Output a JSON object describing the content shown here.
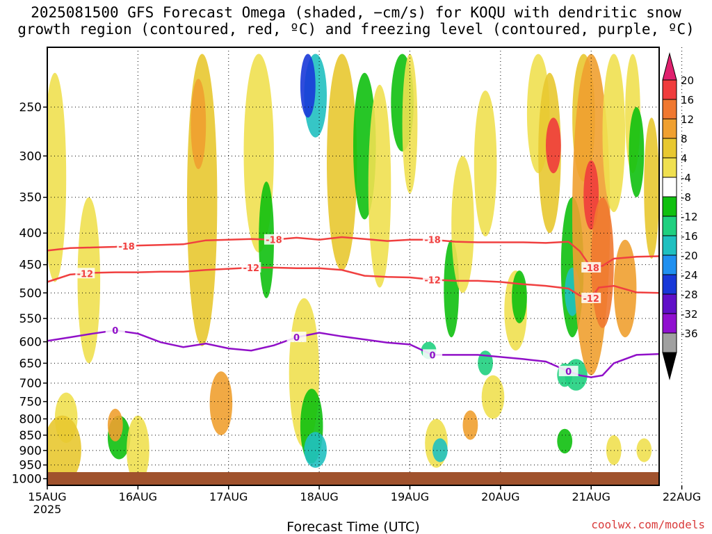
{
  "title": {
    "line1": "2025081500 GFS Forecast Omega (shaded, −cm/s) for KOQU with dendritic snow",
    "line2": "growth region (contoured, red, ºC) and freezing level (contoured, purple, ºC)"
  },
  "credit": "coolwx.com/models",
  "chart_data": {
    "type": "heatmap",
    "xlabel": "Forecast Time (UTC)",
    "x_ticks": [
      "15AUG",
      "16AUG",
      "17AUG",
      "18AUG",
      "19AUG",
      "20AUG",
      "21AUG",
      "22AUG"
    ],
    "x_tick_sublabel": "2025",
    "x_range_hours": [
      0,
      162
    ],
    "y_axis": "pressure (hPa), log scale, inverted",
    "y_ticks": [
      250,
      300,
      350,
      400,
      450,
      500,
      550,
      600,
      650,
      700,
      750,
      800,
      850,
      900,
      950,
      1000
    ],
    "y_range": [
      200,
      1025
    ],
    "grid": true,
    "colorbar": {
      "labels": [
        20,
        16,
        12,
        8,
        4,
        -4,
        -8,
        -12,
        -16,
        -20,
        -24,
        -28,
        -32,
        -36
      ],
      "colors": [
        "#e0206e",
        "#f03c3c",
        "#f07830",
        "#f0a030",
        "#e8c830",
        "#f0e050",
        "#ffffff",
        "#10c010",
        "#20d080",
        "#20c0c0",
        "#2090f0",
        "#1838d8",
        "#6010c8",
        "#9010d0",
        "#a0a0a0",
        "#000000"
      ]
    },
    "dendritic_contours": [
      {
        "label": "-18",
        "color": "#f04040",
        "points": [
          [
            0,
            427
          ],
          [
            6,
            423
          ],
          [
            12,
            422
          ],
          [
            18,
            421
          ],
          [
            24,
            419
          ],
          [
            30,
            418
          ],
          [
            36,
            417
          ],
          [
            42,
            411
          ],
          [
            48,
            410
          ],
          [
            54,
            409
          ],
          [
            60,
            410
          ],
          [
            66,
            407
          ],
          [
            72,
            410
          ],
          [
            78,
            406
          ],
          [
            84,
            409
          ],
          [
            90,
            412
          ],
          [
            96,
            410
          ],
          [
            102,
            410
          ],
          [
            108,
            413
          ],
          [
            114,
            414
          ],
          [
            120,
            414
          ],
          [
            126,
            414
          ],
          [
            132,
            415
          ],
          [
            138,
            413
          ],
          [
            141,
            428
          ],
          [
            144,
            455
          ],
          [
            147,
            452
          ],
          [
            150,
            440
          ],
          [
            156,
            437
          ],
          [
            162,
            436
          ]
        ],
        "label_hours": [
          21,
          60,
          102,
          144
        ]
      },
      {
        "label": "-12",
        "color": "#f04040",
        "points": [
          [
            0,
            480
          ],
          [
            6,
            467
          ],
          [
            12,
            464
          ],
          [
            18,
            463
          ],
          [
            24,
            463
          ],
          [
            30,
            462
          ],
          [
            36,
            462
          ],
          [
            42,
            459
          ],
          [
            48,
            457
          ],
          [
            54,
            455
          ],
          [
            60,
            455
          ],
          [
            66,
            456
          ],
          [
            72,
            456
          ],
          [
            78,
            459
          ],
          [
            84,
            469
          ],
          [
            90,
            471
          ],
          [
            96,
            472
          ],
          [
            102,
            476
          ],
          [
            108,
            478
          ],
          [
            114,
            478
          ],
          [
            120,
            480
          ],
          [
            126,
            484
          ],
          [
            132,
            487
          ],
          [
            138,
            492
          ],
          [
            141,
            505
          ],
          [
            144,
            510
          ],
          [
            146,
            490
          ],
          [
            150,
            487
          ],
          [
            156,
            499
          ],
          [
            162,
            500
          ]
        ],
        "label_hours": [
          10,
          54,
          102,
          144
        ]
      }
    ],
    "freezing_level": {
      "label": "0",
      "color": "#9010c8",
      "points": [
        [
          0,
          598
        ],
        [
          6,
          590
        ],
        [
          12,
          582
        ],
        [
          18,
          575
        ],
        [
          24,
          582
        ],
        [
          30,
          601
        ],
        [
          36,
          612
        ],
        [
          42,
          604
        ],
        [
          48,
          615
        ],
        [
          54,
          620
        ],
        [
          60,
          608
        ],
        [
          66,
          590
        ],
        [
          72,
          580
        ],
        [
          78,
          588
        ],
        [
          84,
          595
        ],
        [
          90,
          602
        ],
        [
          96,
          606
        ],
        [
          102,
          630
        ],
        [
          108,
          630
        ],
        [
          114,
          630
        ],
        [
          120,
          635
        ],
        [
          126,
          640
        ],
        [
          132,
          646
        ],
        [
          138,
          670
        ],
        [
          141,
          680
        ],
        [
          144,
          685
        ],
        [
          147,
          680
        ],
        [
          150,
          650
        ],
        [
          156,
          630
        ],
        [
          162,
          628
        ]
      ],
      "label_hours": [
        18,
        66,
        102,
        138
      ]
    }
  }
}
